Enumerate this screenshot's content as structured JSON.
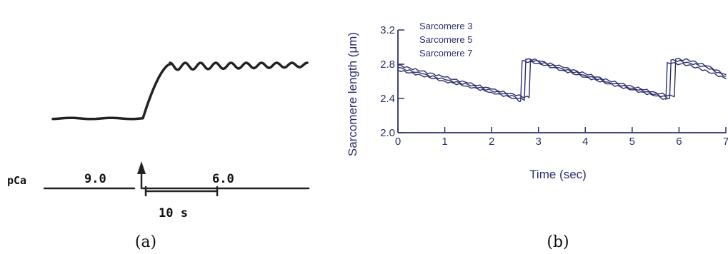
{
  "chart_data": [
    {
      "panel": "a",
      "caption": "(a)",
      "type": "line",
      "xlabel": "",
      "ylabel": "",
      "trace": {
        "baseline_level": 0.0,
        "step_level": 1.0,
        "oscillation_cycles": 9
      },
      "protocol": {
        "label": "pCa",
        "segments": [
          {
            "value": "9.0"
          },
          {
            "value": "6.0"
          }
        ]
      },
      "scale_bar": {
        "label": "10 s",
        "seconds": 10
      }
    },
    {
      "panel": "b",
      "caption": "(b)",
      "type": "line",
      "xlabel": "Time (sec)",
      "ylabel": "Sarcomere length (μm)",
      "xlim": [
        0,
        7
      ],
      "ylim": [
        2.0,
        3.2
      ],
      "xticks": [
        "0",
        "1",
        "2",
        "3",
        "4",
        "5",
        "6",
        "7"
      ],
      "yticks": [
        "2.0",
        "2.4",
        "2.8",
        "3.2"
      ],
      "legend_position": "top-left",
      "series": [
        {
          "name": "Sarcomere 3",
          "x": [
            0,
            0.5,
            1.0,
            1.5,
            2.0,
            2.5,
            2.8,
            2.83,
            3.0,
            3.5,
            4.0,
            4.5,
            5.0,
            5.5,
            5.9,
            5.93,
            6.2,
            6.6,
            7.0
          ],
          "y": [
            2.79,
            2.72,
            2.65,
            2.58,
            2.51,
            2.44,
            2.41,
            2.86,
            2.84,
            2.77,
            2.69,
            2.61,
            2.54,
            2.47,
            2.42,
            2.86,
            2.85,
            2.78,
            2.68
          ]
        },
        {
          "name": "Sarcomere 5",
          "x": [
            0,
            0.5,
            1.0,
            1.5,
            2.0,
            2.5,
            2.7,
            2.73,
            3.0,
            3.5,
            4.0,
            4.5,
            5.0,
            5.5,
            5.8,
            5.83,
            6.2,
            6.6,
            7.0
          ],
          "y": [
            2.76,
            2.69,
            2.62,
            2.56,
            2.49,
            2.42,
            2.38,
            2.86,
            2.83,
            2.75,
            2.67,
            2.59,
            2.52,
            2.45,
            2.4,
            2.85,
            2.82,
            2.76,
            2.66
          ]
        },
        {
          "name": "Sarcomere 7",
          "x": [
            0,
            0.5,
            1.0,
            1.5,
            2.0,
            2.5,
            2.62,
            2.65,
            3.0,
            3.5,
            4.0,
            4.5,
            5.0,
            5.5,
            5.72,
            5.75,
            6.2,
            6.6,
            7.0
          ],
          "y": [
            2.73,
            2.67,
            2.6,
            2.54,
            2.47,
            2.4,
            2.37,
            2.84,
            2.81,
            2.73,
            2.65,
            2.57,
            2.5,
            2.43,
            2.39,
            2.82,
            2.79,
            2.72,
            2.63
          ]
        }
      ]
    }
  ]
}
